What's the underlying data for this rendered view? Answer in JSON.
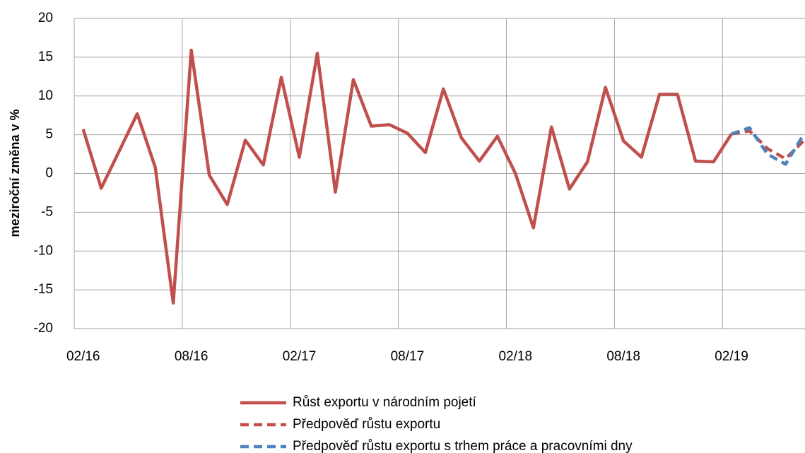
{
  "chart_data": {
    "type": "line",
    "y_label": "meziroční změna v %",
    "categories": [
      "02/16",
      null,
      null,
      null,
      null,
      null,
      "08/16",
      null,
      null,
      null,
      null,
      null,
      "02/17",
      null,
      null,
      null,
      null,
      null,
      "08/17",
      null,
      null,
      null,
      null,
      null,
      "02/18",
      null,
      null,
      null,
      null,
      null,
      "08/18",
      null,
      null,
      null,
      null,
      null,
      "02/19",
      null,
      null,
      null,
      null
    ],
    "series": [
      {
        "name": "Růst exportu v národním pojetí",
        "color": "#c0504d",
        "dash": "solid",
        "values": [
          5.7,
          -1.9,
          2.9,
          7.7,
          0.8,
          -16.7,
          15.9,
          -0.2,
          -4.0,
          4.3,
          1.1,
          12.4,
          2.1,
          15.5,
          -2.4,
          12.1,
          6.1,
          6.3,
          5.2,
          2.7,
          10.9,
          4.6,
          1.6,
          4.8,
          0.0,
          -7.0,
          6.0,
          -2.0,
          1.5,
          11.1,
          4.2,
          2.1,
          10.2,
          10.2,
          1.6,
          1.5,
          5.1,
          null,
          null,
          null,
          null
        ]
      },
      {
        "name": "Předpověď růstu exportu",
        "color": "#c0504d",
        "dash": "dashed",
        "values": [
          null,
          null,
          null,
          null,
          null,
          null,
          null,
          null,
          null,
          null,
          null,
          null,
          null,
          null,
          null,
          null,
          null,
          null,
          null,
          null,
          null,
          null,
          null,
          null,
          null,
          null,
          null,
          null,
          null,
          null,
          null,
          null,
          null,
          null,
          null,
          null,
          5.1,
          5.5,
          3.2,
          1.9,
          4.2
        ]
      },
      {
        "name": "Předpověď růstu exportu s trhem práce a pracovními dny",
        "color": "#4f81bd",
        "dash": "dashed",
        "values": [
          null,
          null,
          null,
          null,
          null,
          null,
          null,
          null,
          null,
          null,
          null,
          null,
          null,
          null,
          null,
          null,
          null,
          null,
          null,
          null,
          null,
          null,
          null,
          null,
          null,
          null,
          null,
          null,
          null,
          null,
          null,
          null,
          null,
          null,
          null,
          null,
          5.1,
          5.9,
          2.5,
          1.2,
          5.0
        ]
      }
    ],
    "ylim": [
      -20,
      20
    ],
    "yticks": [
      -20,
      -15,
      -10,
      -5,
      0,
      5,
      10,
      15,
      20
    ],
    "grid": true
  }
}
